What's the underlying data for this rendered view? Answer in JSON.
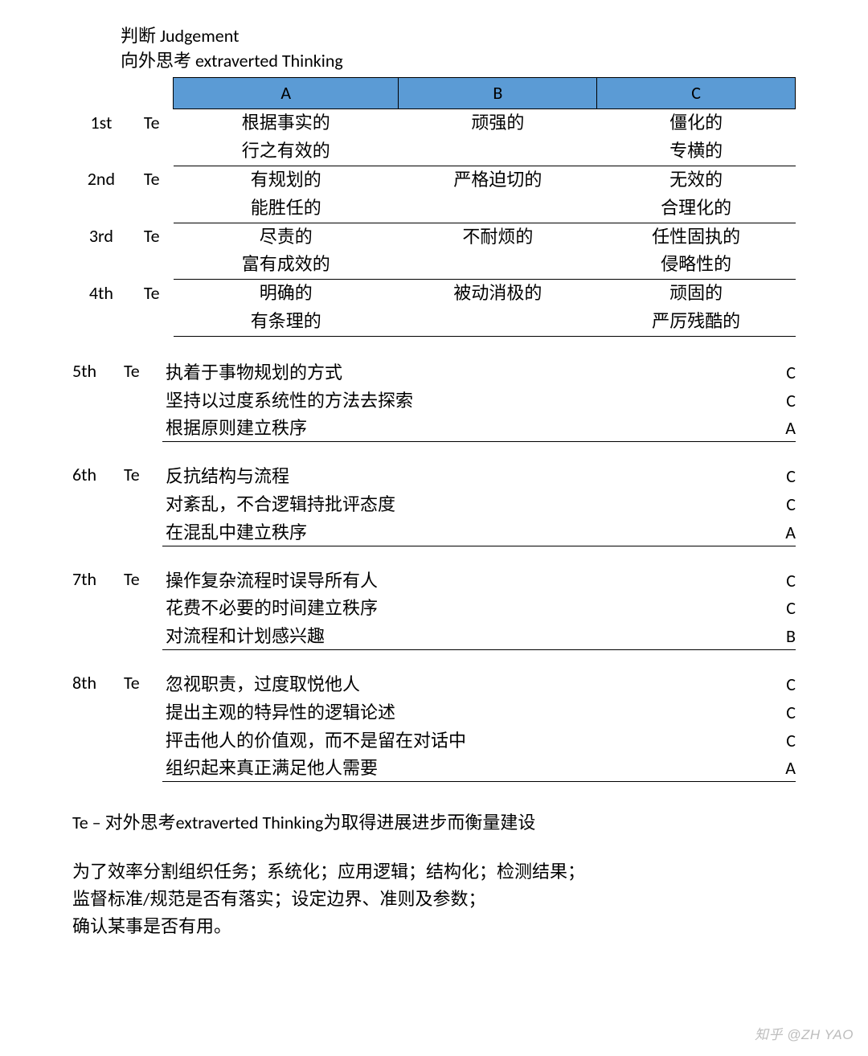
{
  "heading1": "判断 Judgement",
  "heading2": "向外思考 extraverted Thinking",
  "header_bg": "#5b9bd5",
  "columns": {
    "A": "A",
    "B": "B",
    "C": "C"
  },
  "rows": [
    {
      "ord": "1st",
      "func": "Te",
      "A": [
        "根据事实的",
        "行之有效的"
      ],
      "B": [
        "顽强的",
        ""
      ],
      "C": [
        "僵化的",
        "专横的"
      ]
    },
    {
      "ord": "2nd",
      "func": "Te",
      "A": [
        "有规划的",
        "能胜任的"
      ],
      "B": [
        "严格迫切的",
        ""
      ],
      "C": [
        "无效的",
        "合理化的"
      ]
    },
    {
      "ord": "3rd",
      "func": "Te",
      "A": [
        "尽责的",
        "富有成效的"
      ],
      "B": [
        "不耐烦的",
        ""
      ],
      "C": [
        "任性固执的",
        "侵略性的"
      ]
    },
    {
      "ord": "4th",
      "func": "Te",
      "A": [
        "明确的",
        "有条理的"
      ],
      "B": [
        "被动消极的",
        ""
      ],
      "C": [
        "顽固的",
        "严厉残酷的"
      ]
    }
  ],
  "blocks": [
    {
      "ord": "5th",
      "func": "Te",
      "lines": [
        {
          "text": "执着于事物规划的方式",
          "tag": "C"
        },
        {
          "text": "坚持以过度系统性的方法去探索",
          "tag": "C"
        },
        {
          "text": "根据原则建立秩序",
          "tag": "A"
        }
      ]
    },
    {
      "ord": "6th",
      "func": "Te",
      "lines": [
        {
          "text": "反抗结构与流程",
          "tag": "C"
        },
        {
          "text": "对紊乱，不合逻辑持批评态度",
          "tag": "C"
        },
        {
          "text": "在混乱中建立秩序",
          "tag": "A"
        }
      ]
    },
    {
      "ord": "7th",
      "func": "Te",
      "lines": [
        {
          "text": "操作复杂流程时误导所有人",
          "tag": "C"
        },
        {
          "text": "花费不必要的时间建立秩序",
          "tag": "C"
        },
        {
          "text": "对流程和计划感兴趣",
          "tag": "B"
        }
      ]
    },
    {
      "ord": "8th",
      "func": "Te",
      "lines": [
        {
          "text": "忽视职责，过度取悦他人",
          "tag": "C"
        },
        {
          "text": "提出主观的特异性的逻辑论述",
          "tag": "C"
        },
        {
          "text": "抨击他人的价值观，而不是留在对话中",
          "tag": "C"
        },
        {
          "text": "组织起来真正满足他人需要",
          "tag": "A"
        }
      ]
    }
  ],
  "definition": "Te – 对外思考extraverted Thinking为取得进展进步而衡量建设",
  "description": [
    "为了效率分割组织任务；系统化；应用逻辑；结构化；检测结果；",
    "监督标准/规范是否有落实；设定边界、准则及参数；",
    "确认某事是否有用。"
  ],
  "watermark": "知乎 @ZH YAO"
}
